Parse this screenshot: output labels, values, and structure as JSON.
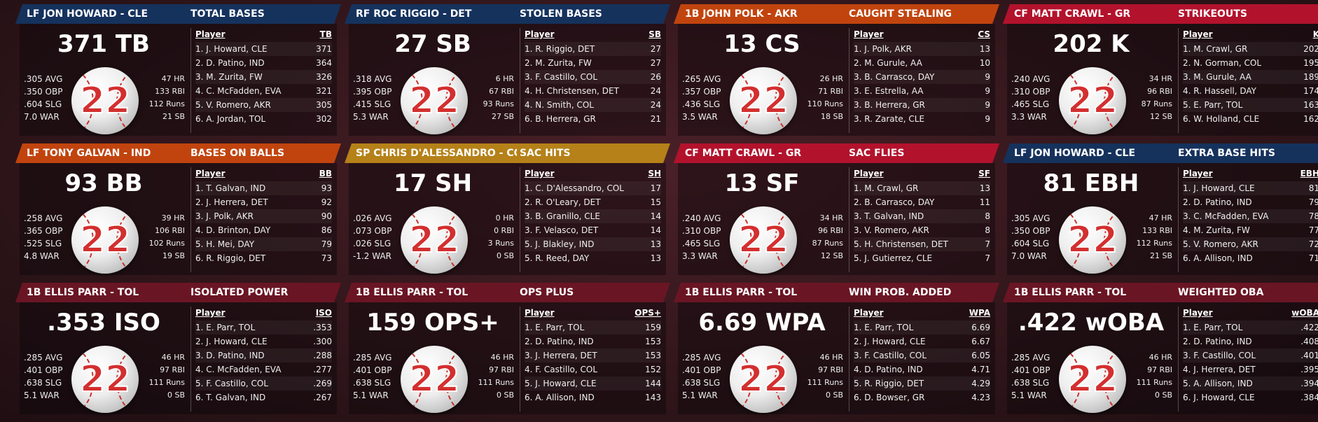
{
  "colors": {
    "blue": "#15325d",
    "orange": "#c1440e",
    "gold": "#b58118",
    "red": "#b3122c",
    "maroon": "#6a1524"
  },
  "ball_number": "22",
  "cards": [
    {
      "color": "blue",
      "player_name": "LF JON HOWARD - CLE",
      "stat_title": "TOTAL BASES",
      "big_stat": "371 TB",
      "left_stats": [
        ".305 AVG",
        ".350 OBP",
        ".604 SLG",
        "7.0 WAR"
      ],
      "right_stats": [
        "47 HR",
        "133 RBI",
        "112 Runs",
        "21 SB"
      ],
      "col_player": "Player",
      "col_stat": "TB",
      "rows": [
        {
          "player": "1. J. Howard, CLE",
          "value": "371"
        },
        {
          "player": "2. D. Patino, IND",
          "value": "364"
        },
        {
          "player": "3. M. Zurita, FW",
          "value": "326"
        },
        {
          "player": "4. C. McFadden, EVA",
          "value": "321"
        },
        {
          "player": "5. V. Romero, AKR",
          "value": "305"
        },
        {
          "player": "6. A. Jordan, TOL",
          "value": "302"
        }
      ]
    },
    {
      "color": "blue",
      "player_name": "RF ROC RIGGIO - DET",
      "stat_title": "STOLEN BASES",
      "big_stat": "27 SB",
      "left_stats": [
        ".318 AVG",
        ".395 OBP",
        ".415 SLG",
        "5.3 WAR"
      ],
      "right_stats": [
        "6 HR",
        "67 RBI",
        "93 Runs",
        "27 SB"
      ],
      "col_player": "Player",
      "col_stat": "SB",
      "rows": [
        {
          "player": "1. R. Riggio, DET",
          "value": "27"
        },
        {
          "player": "2. M. Zurita, FW",
          "value": "27"
        },
        {
          "player": "3. F. Castillo, COL",
          "value": "26"
        },
        {
          "player": "4. H. Christensen, DET",
          "value": "24"
        },
        {
          "player": "4. N. Smith, COL",
          "value": "24"
        },
        {
          "player": "6. B. Herrera, GR",
          "value": "21"
        }
      ]
    },
    {
      "color": "orange",
      "player_name": "1B JOHN POLK - AKR",
      "stat_title": "CAUGHT STEALING",
      "big_stat": "13 CS",
      "left_stats": [
        ".265 AVG",
        ".357 OBP",
        ".436 SLG",
        "3.5 WAR"
      ],
      "right_stats": [
        "26 HR",
        "71 RBI",
        "110 Runs",
        "18 SB"
      ],
      "col_player": "Player",
      "col_stat": "CS",
      "rows": [
        {
          "player": "1. J. Polk, AKR",
          "value": "13"
        },
        {
          "player": "2. M. Gurule, AA",
          "value": "10"
        },
        {
          "player": "3. B. Carrasco, DAY",
          "value": "9"
        },
        {
          "player": "3. E. Estrella, AA",
          "value": "9"
        },
        {
          "player": "3. B. Herrera, GR",
          "value": "9"
        },
        {
          "player": "3. R. Zarate, CLE",
          "value": "9"
        }
      ]
    },
    {
      "color": "red",
      "player_name": "CF MATT CRAWL - GR",
      "stat_title": "STRIKEOUTS",
      "big_stat": "202 K",
      "left_stats": [
        ".240 AVG",
        ".310 OBP",
        ".465 SLG",
        "3.3 WAR"
      ],
      "right_stats": [
        "34 HR",
        "96 RBI",
        "87 Runs",
        "12 SB"
      ],
      "col_player": "Player",
      "col_stat": "K",
      "rows": [
        {
          "player": "1. M. Crawl, GR",
          "value": "202"
        },
        {
          "player": "2. N. Gorman, COL",
          "value": "195"
        },
        {
          "player": "3. M. Gurule, AA",
          "value": "189"
        },
        {
          "player": "4. R. Hassell, DAY",
          "value": "174"
        },
        {
          "player": "5. E. Parr, TOL",
          "value": "163"
        },
        {
          "player": "6. W. Holland, CLE",
          "value": "162"
        }
      ]
    },
    {
      "color": "orange",
      "player_name": "LF TONY GALVAN - IND",
      "stat_title": "BASES ON BALLS",
      "big_stat": "93 BB",
      "left_stats": [
        ".258 AVG",
        ".365 OBP",
        ".525 SLG",
        "4.8 WAR"
      ],
      "right_stats": [
        "39 HR",
        "106 RBI",
        "102 Runs",
        "19 SB"
      ],
      "col_player": "Player",
      "col_stat": "BB",
      "rows": [
        {
          "player": "1. T. Galvan, IND",
          "value": "93"
        },
        {
          "player": "2. J. Herrera, DET",
          "value": "92"
        },
        {
          "player": "3. J. Polk, AKR",
          "value": "90"
        },
        {
          "player": "4. D. Brinton, DAY",
          "value": "86"
        },
        {
          "player": "5. H. Mei, DAY",
          "value": "79"
        },
        {
          "player": "6. R. Riggio, DET",
          "value": "73"
        }
      ]
    },
    {
      "color": "gold",
      "player_name": "SP CHRIS D'ALESSANDRO - COL",
      "stat_title": "SAC HITS",
      "big_stat": "17 SH",
      "left_stats": [
        ".026 AVG",
        ".073 OBP",
        ".026 SLG",
        "-1.2 WAR"
      ],
      "right_stats": [
        "0 HR",
        "0 RBI",
        "3 Runs",
        "0 SB"
      ],
      "col_player": "Player",
      "col_stat": "SH",
      "rows": [
        {
          "player": "1. C. D'Alessandro, COL",
          "value": "17"
        },
        {
          "player": "2. R. O'Leary, DET",
          "value": "15"
        },
        {
          "player": "3. B. Granillo, CLE",
          "value": "14"
        },
        {
          "player": "3. F. Velasco, DET",
          "value": "14"
        },
        {
          "player": "5. J. Blakley, IND",
          "value": "13"
        },
        {
          "player": "5. R. Reed, DAY",
          "value": "13"
        }
      ]
    },
    {
      "color": "red",
      "player_name": "CF MATT CRAWL - GR",
      "stat_title": "SAC FLIES",
      "big_stat": "13 SF",
      "left_stats": [
        ".240 AVG",
        ".310 OBP",
        ".465 SLG",
        "3.3 WAR"
      ],
      "right_stats": [
        "34 HR",
        "96 RBI",
        "87 Runs",
        "12 SB"
      ],
      "col_player": "Player",
      "col_stat": "SF",
      "rows": [
        {
          "player": "1. M. Crawl, GR",
          "value": "13"
        },
        {
          "player": "2. B. Carrasco, DAY",
          "value": "11"
        },
        {
          "player": "3. T. Galvan, IND",
          "value": "8"
        },
        {
          "player": "3. V. Romero, AKR",
          "value": "8"
        },
        {
          "player": "5. H. Christensen, DET",
          "value": "7"
        },
        {
          "player": "5. J. Gutierrez, CLE",
          "value": "7"
        }
      ]
    },
    {
      "color": "blue",
      "player_name": "LF JON HOWARD - CLE",
      "stat_title": "EXTRA BASE HITS",
      "big_stat": "81 EBH",
      "left_stats": [
        ".305 AVG",
        ".350 OBP",
        ".604 SLG",
        "7.0 WAR"
      ],
      "right_stats": [
        "47 HR",
        "133 RBI",
        "112 Runs",
        "21 SB"
      ],
      "col_player": "Player",
      "col_stat": "EBH",
      "rows": [
        {
          "player": "1. J. Howard, CLE",
          "value": "81"
        },
        {
          "player": "2. D. Patino, IND",
          "value": "79"
        },
        {
          "player": "3. C. McFadden, EVA",
          "value": "78"
        },
        {
          "player": "4. M. Zurita, FW",
          "value": "77"
        },
        {
          "player": "5. V. Romero, AKR",
          "value": "72"
        },
        {
          "player": "6. A. Allison, IND",
          "value": "71"
        }
      ]
    },
    {
      "color": "maroon",
      "player_name": "1B ELLIS PARR - TOL",
      "stat_title": "ISOLATED POWER",
      "big_stat": ".353 ISO",
      "left_stats": [
        ".285 AVG",
        ".401 OBP",
        ".638 SLG",
        "5.1 WAR"
      ],
      "right_stats": [
        "46 HR",
        "97 RBI",
        "111 Runs",
        "0 SB"
      ],
      "col_player": "Player",
      "col_stat": "ISO",
      "rows": [
        {
          "player": "1. E. Parr, TOL",
          "value": ".353"
        },
        {
          "player": "2. J. Howard, CLE",
          "value": ".300"
        },
        {
          "player": "3. D. Patino, IND",
          "value": ".288"
        },
        {
          "player": "4. C. McFadden, EVA",
          "value": ".277"
        },
        {
          "player": "5. F. Castillo, COL",
          "value": ".269"
        },
        {
          "player": "6. T. Galvan, IND",
          "value": ".267"
        }
      ]
    },
    {
      "color": "maroon",
      "player_name": "1B ELLIS PARR - TOL",
      "stat_title": "OPS PLUS",
      "big_stat": "159 OPS+",
      "left_stats": [
        ".285 AVG",
        ".401 OBP",
        ".638 SLG",
        "5.1 WAR"
      ],
      "right_stats": [
        "46 HR",
        "97 RBI",
        "111 Runs",
        "0 SB"
      ],
      "col_player": "Player",
      "col_stat": "OPS+",
      "rows": [
        {
          "player": "1. E. Parr, TOL",
          "value": "159"
        },
        {
          "player": "2. D. Patino, IND",
          "value": "153"
        },
        {
          "player": "3. J. Herrera, DET",
          "value": "153"
        },
        {
          "player": "4. F. Castillo, COL",
          "value": "152"
        },
        {
          "player": "5. J. Howard, CLE",
          "value": "144"
        },
        {
          "player": "6. A. Allison, IND",
          "value": "143"
        }
      ]
    },
    {
      "color": "maroon",
      "player_name": "1B ELLIS PARR - TOL",
      "stat_title": "WIN PROB. ADDED",
      "big_stat": "6.69 WPA",
      "left_stats": [
        ".285 AVG",
        ".401 OBP",
        ".638 SLG",
        "5.1 WAR"
      ],
      "right_stats": [
        "46 HR",
        "97 RBI",
        "111 Runs",
        "0 SB"
      ],
      "col_player": "Player",
      "col_stat": "WPA",
      "rows": [
        {
          "player": "1. E. Parr, TOL",
          "value": "6.69"
        },
        {
          "player": "2. J. Howard, CLE",
          "value": "6.67"
        },
        {
          "player": "3. F. Castillo, COL",
          "value": "6.05"
        },
        {
          "player": "4. D. Patino, IND",
          "value": "4.71"
        },
        {
          "player": "5. R. Riggio, DET",
          "value": "4.29"
        },
        {
          "player": "6. D. Bowser, GR",
          "value": "4.23"
        }
      ]
    },
    {
      "color": "maroon",
      "player_name": "1B ELLIS PARR - TOL",
      "stat_title": "WEIGHTED OBA",
      "big_stat": ".422 wOBA",
      "left_stats": [
        ".285 AVG",
        ".401 OBP",
        ".638 SLG",
        "5.1 WAR"
      ],
      "right_stats": [
        "46 HR",
        "97 RBI",
        "111 Runs",
        "0 SB"
      ],
      "col_player": "Player",
      "col_stat": "wOBA",
      "rows": [
        {
          "player": "1. E. Parr, TOL",
          "value": ".422"
        },
        {
          "player": "2. D. Patino, IND",
          "value": ".408"
        },
        {
          "player": "3. F. Castillo, COL",
          "value": ".401"
        },
        {
          "player": "4. J. Herrera, DET",
          "value": ".395"
        },
        {
          "player": "5. A. Allison, IND",
          "value": ".394"
        },
        {
          "player": "6. J. Howard, CLE",
          "value": ".384"
        }
      ]
    }
  ]
}
